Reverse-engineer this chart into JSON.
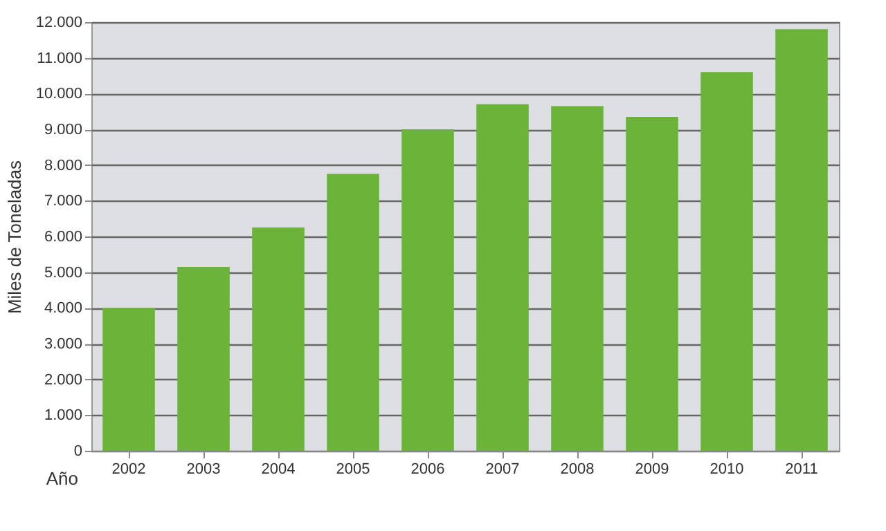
{
  "chart_data": {
    "type": "bar",
    "xlabel": "Año",
    "ylabel": "Miles de Toneladas",
    "categories": [
      "2002",
      "2003",
      "2004",
      "2005",
      "2006",
      "2007",
      "2008",
      "2009",
      "2010",
      "2011"
    ],
    "values": [
      4000,
      5150,
      6250,
      7750,
      9000,
      9700,
      9650,
      9350,
      10600,
      11800
    ],
    "color": "#6cb33a",
    "ylim": [
      0,
      12000
    ],
    "yticks": [
      {
        "value": 0,
        "label": "0"
      },
      {
        "value": 1000,
        "label": "1.000"
      },
      {
        "value": 2000,
        "label": "2.000"
      },
      {
        "value": 3000,
        "label": "3.000"
      },
      {
        "value": 4000,
        "label": "4.000"
      },
      {
        "value": 5000,
        "label": "5.000"
      },
      {
        "value": 6000,
        "label": "6.000"
      },
      {
        "value": 7000,
        "label": "7.000"
      },
      {
        "value": 8000,
        "label": "8.000"
      },
      {
        "value": 9000,
        "label": "9.000"
      },
      {
        "value": 10000,
        "label": "10.000"
      },
      {
        "value": 11000,
        "label": "11.000"
      },
      {
        "value": 12000,
        "label": "12.000"
      }
    ],
    "grid": true
  }
}
